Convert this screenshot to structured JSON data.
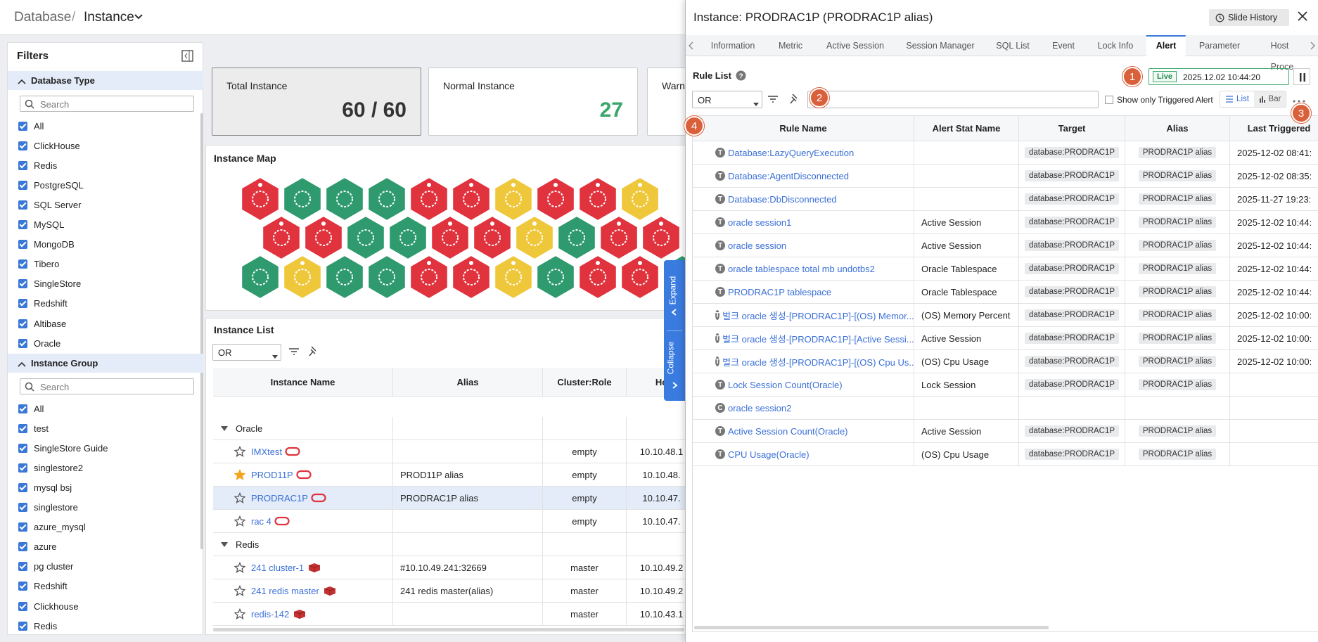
{
  "header": {
    "section": "Database",
    "page": "Instance"
  },
  "filters": {
    "title": "Filters",
    "groups": [
      {
        "title": "Database Type",
        "search_placeholder": "Search",
        "items": [
          "All",
          "ClickHouse",
          "Redis",
          "PostgreSQL",
          "SQL Server",
          "MySQL",
          "MongoDB",
          "Tibero",
          "SingleStore",
          "Redshift",
          "Altibase",
          "Oracle"
        ]
      },
      {
        "title": "Instance Group",
        "search_placeholder": "Search",
        "items": [
          "All",
          "test",
          "SingleStore Guide",
          "singlestore2",
          "mysql bsj",
          "singlestore",
          "azure_mysql",
          "azure",
          "pg cluster",
          "Redshift",
          "Clickhouse",
          "Redis"
        ]
      }
    ]
  },
  "summary_cards": [
    {
      "label": "Total Instance",
      "value": "60 / 60"
    },
    {
      "label": "Normal Instance",
      "value": "27"
    },
    {
      "label": "Warn"
    }
  ],
  "instance_map": {
    "title": "Instance Map"
  },
  "instance_list": {
    "title": "Instance List",
    "operator": "OR",
    "columns": [
      "Instance Name",
      "Alias",
      "Cluster:Role",
      "Ho"
    ],
    "groups": [
      {
        "name": "Oracle",
        "rows": [
          {
            "name": "IMXtest",
            "alias": null,
            "role": "empty",
            "host": "10.10.48.1",
            "favorite": false,
            "selected": false,
            "db": "oracle"
          },
          {
            "name": "PROD11P",
            "alias": "PROD11P alias",
            "role": "empty",
            "host": "10.10.48.",
            "favorite": true,
            "selected": false,
            "db": "oracle"
          },
          {
            "name": "PRODRAC1P",
            "alias": "PRODRAC1P alias",
            "role": "empty",
            "host": "10.10.47.",
            "favorite": false,
            "selected": true,
            "db": "oracle"
          },
          {
            "name": "rac 4",
            "alias": null,
            "role": "empty",
            "host": "10.10.47.",
            "favorite": false,
            "selected": false,
            "db": "oracle"
          }
        ]
      },
      {
        "name": "Redis",
        "rows": [
          {
            "name": "241 cluster-1",
            "alias": "#10.10.49.241:32669",
            "role": "master",
            "host": "10.10.49.2",
            "favorite": false,
            "selected": false,
            "db": "redis"
          },
          {
            "name": "241 redis master",
            "alias": "241 redis master(alias)",
            "role": "master",
            "host": "10.10.49.2",
            "favorite": false,
            "selected": false,
            "db": "redis"
          },
          {
            "name": "redis-142",
            "alias": null,
            "role": "master",
            "host": "10.10.43.1",
            "favorite": false,
            "selected": false,
            "db": "redis"
          }
        ]
      }
    ]
  },
  "expand_tab": {
    "expand": "Expand",
    "collapse": "Collapse"
  },
  "detail_panel": {
    "title": "Instance: PRODRAC1P (PRODRAC1P alias)",
    "slide_history": "Slide History",
    "tabs": [
      "Information",
      "Metric",
      "Active Session",
      "Session Manager",
      "SQL List",
      "Event",
      "Lock Info",
      "Alert",
      "Parameter",
      "Host Proce"
    ],
    "active_tab": 7,
    "markers": [
      "1",
      "2",
      "3",
      "4"
    ],
    "rule_list": {
      "title": "Rule List",
      "live": "Live",
      "timestamp": "2025.12.02 10:44:20",
      "operator": "OR",
      "triggered_only_label": "Show only Triggered Alert",
      "view_list": "List",
      "view_bar": "Bar",
      "columns": [
        "Rule Name",
        "Alert Stat Name",
        "Target",
        "Alias",
        "Last Triggered"
      ],
      "rows": [
        {
          "kind": "T",
          "name": "Database:LazyQueryExecution",
          "stat": null,
          "target": "database:PRODRAC1P",
          "alias": "PRODRAC1P alias",
          "last": "2025-12-02 08:41:"
        },
        {
          "kind": "T",
          "name": "Database:AgentDisconnected",
          "stat": null,
          "target": "database:PRODRAC1P",
          "alias": "PRODRAC1P alias",
          "last": "2025-12-02 08:35:"
        },
        {
          "kind": "T",
          "name": "Database:DbDisconnected",
          "stat": null,
          "target": "database:PRODRAC1P",
          "alias": "PRODRAC1P alias",
          "last": "2025-11-27 19:23:"
        },
        {
          "kind": "T",
          "name": "oracle session1",
          "stat": "Active Session",
          "target": "database:PRODRAC1P",
          "alias": "PRODRAC1P alias",
          "last": "2025-12-02 10:44:"
        },
        {
          "kind": "T",
          "name": "oracle session",
          "stat": "Active Session",
          "target": "database:PRODRAC1P",
          "alias": "PRODRAC1P alias",
          "last": "2025-12-02 10:44:"
        },
        {
          "kind": "T",
          "name": "oracle tablespace total mb undotbs2",
          "stat": "Oracle Tablespace",
          "target": "database:PRODRAC1P",
          "alias": "PRODRAC1P alias",
          "last": "2025-12-02 10:44:"
        },
        {
          "kind": "T",
          "name": "PRODRAC1P tablespace",
          "stat": "Oracle Tablespace",
          "target": "database:PRODRAC1P",
          "alias": "PRODRAC1P alias",
          "last": "2025-12-02 10:44:"
        },
        {
          "kind": "T",
          "name": "벌크 oracle 생성-[PRODRAC1P]-[(OS) Memor...",
          "stat": "(OS) Memory Percent",
          "target": "database:PRODRAC1P",
          "alias": "PRODRAC1P alias",
          "last": "2025-12-02 10:00:"
        },
        {
          "kind": "T",
          "name": "벌크 oracle 생성-[PRODRAC1P]-[Active Sessi...",
          "stat": "Active Session",
          "target": "database:PRODRAC1P",
          "alias": "PRODRAC1P alias",
          "last": "2025-12-02 10:00:"
        },
        {
          "kind": "T",
          "name": "벌크 oracle 생성-[PRODRAC1P]-[(OS) Cpu Us...",
          "stat": "(OS) Cpu Usage",
          "target": "database:PRODRAC1P",
          "alias": "PRODRAC1P alias",
          "last": "2025-12-02 10:00:"
        },
        {
          "kind": "T",
          "name": "Lock Session Count(Oracle)",
          "stat": "Lock Session",
          "target": "database:PRODRAC1P",
          "alias": "PRODRAC1P alias",
          "last": null
        },
        {
          "kind": "C",
          "name": "oracle session2",
          "stat": null,
          "target": null,
          "alias": null,
          "last": null
        },
        {
          "kind": "T",
          "name": "Active Session Count(Oracle)",
          "stat": "Active Session",
          "target": "database:PRODRAC1P",
          "alias": "PRODRAC1P alias",
          "last": null
        },
        {
          "kind": "T",
          "name": "CPU Usage(Oracle)",
          "stat": "(OS) Cpu Usage",
          "target": "database:PRODRAC1P",
          "alias": "PRODRAC1P alias",
          "last": null
        }
      ]
    }
  }
}
